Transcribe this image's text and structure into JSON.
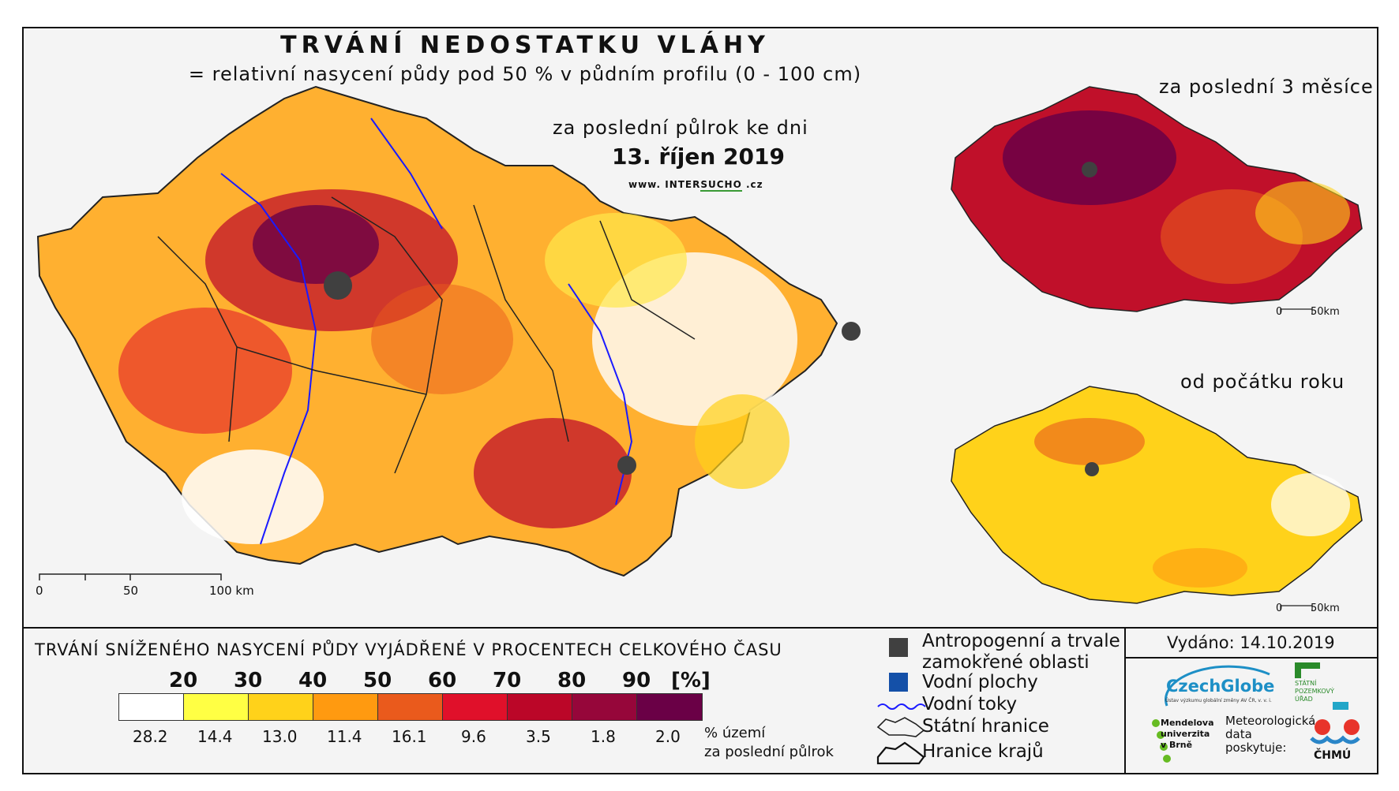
{
  "title": "TRVÁNÍ NEDOSTATKU VLÁHY",
  "subtitle": "= relativní nasycení půdy pod 50 % v půdním profilu (0 - 100 cm)",
  "main_map": {
    "period": "za poslední půlrok ke dni",
    "date": "13. říjen 2019",
    "website": {
      "pre": "www. INTER",
      "mid": "SUCHO",
      "post": " .cz"
    },
    "scale": {
      "t0": "0",
      "t1": "50",
      "t2": "100 km"
    }
  },
  "inset_3m": {
    "title": "za poslední 3 měsíce",
    "scale": {
      "t0": "0",
      "t1": "50km"
    }
  },
  "inset_year": {
    "title": "od počátku roku",
    "scale": {
      "t0": "0",
      "t1": "50km"
    }
  },
  "legend": {
    "title": "TRVÁNÍ SNÍŽENÉHO NASYCENÍ PŮDY VYJÁDŘENÉ V PROCENTECH CELKOVÉHO ČASU",
    "thresholds": [
      "20",
      "30",
      "40",
      "50",
      "60",
      "70",
      "80",
      "90"
    ],
    "unit": "[%]",
    "classes": [
      {
        "color": "#ffffff",
        "share": "28.2"
      },
      {
        "color": "#ffff44",
        "share": "14.4"
      },
      {
        "color": "#ffd21a",
        "share": "13.0"
      },
      {
        "color": "#ff9a10",
        "share": "11.4"
      },
      {
        "color": "#ea5a1c",
        "share": "16.1"
      },
      {
        "color": "#e0102a",
        "share": "9.6"
      },
      {
        "color": "#bb0628",
        "share": "3.5"
      },
      {
        "color": "#96063a",
        "share": "1.8"
      },
      {
        "color": "#6a0046",
        "share": "2.0"
      }
    ],
    "share_label_1": "% území",
    "share_label_2": "za poslední půlrok",
    "symbols": {
      "anthropogenic": "Antropogenní a trvale\nzamokřené oblasti",
      "water_bodies": "Vodní plochy",
      "rivers": "Vodní toky",
      "state_border": "Státní hranice",
      "regions": "Hranice krajů"
    },
    "symbol_colors": {
      "anthropogenic": "#404040",
      "water_bodies": "#1450a8",
      "rivers": "#1a1aff"
    }
  },
  "issued": "Vydáno: 14.10.2019",
  "logos": {
    "czechglobe": "CzechGlobe",
    "czechglobe_sub": "Ústav výzkumu globální změny AV ČR, v. v. i.",
    "spu": "STÁTNÍ\nPOZEMKOVÝ\nÚŘAD",
    "mendel": "Mendelova\nuniverzita\nv Brně",
    "meteo": "Meteorologická\ndata\nposkytuje:",
    "chmu": "ČHMÚ"
  }
}
